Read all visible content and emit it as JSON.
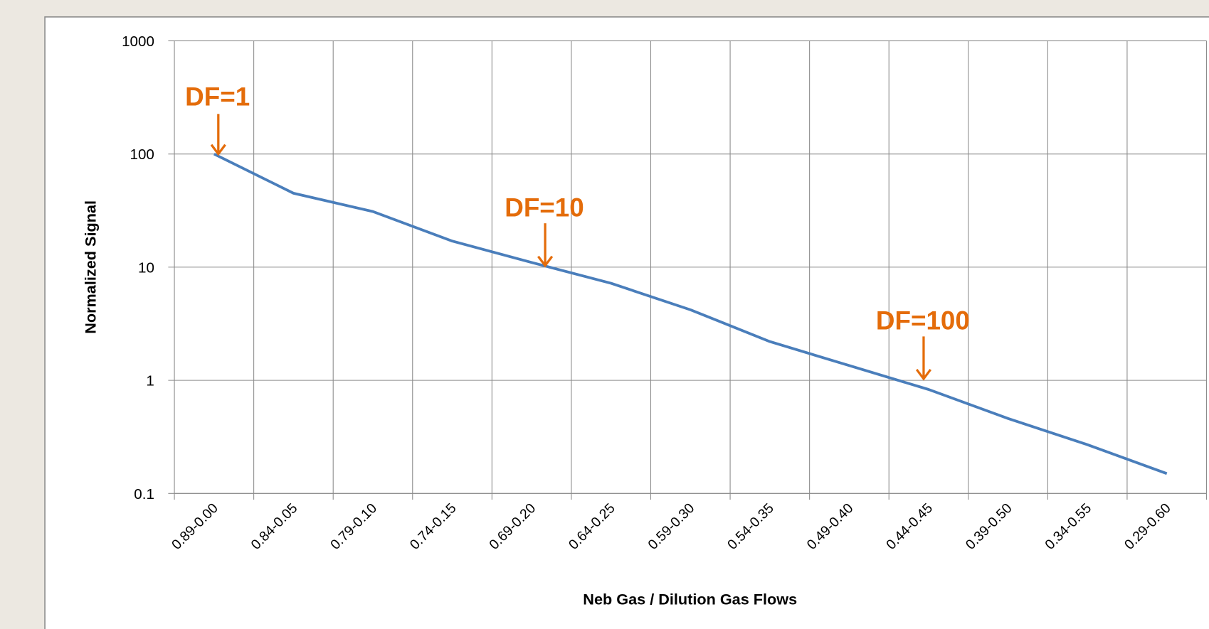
{
  "chart_data": {
    "type": "line",
    "log_scale_y": true,
    "grid": true,
    "x_label": "Neb Gas / Dilution Gas Flows",
    "y_label": "Normalized Signal",
    "categories": [
      "0.89-0.00",
      "0.84-0.05",
      "0.79-0.10",
      "0.74-0.15",
      "0.69-0.20",
      "0.64-0.25",
      "0.59-0.30",
      "0.54-0.35",
      "0.49-0.40",
      "0.44-0.45",
      "0.39-0.50",
      "0.34-0.55",
      "0.29-0.60"
    ],
    "series": [
      {
        "color": "#4a7ebb",
        "values": [
          100,
          45,
          31,
          17,
          11,
          7.2,
          4.2,
          2.2,
          1.35,
          0.83,
          0.46,
          0.27,
          0.15
        ]
      }
    ],
    "ylim": [
      0.1,
      1000
    ],
    "yticks": [
      0.1,
      1,
      10,
      100,
      1000
    ],
    "annotations": [
      "DF=1",
      "DF=10",
      "DF=100"
    ],
    "annotation_color": "#e46c0a"
  }
}
